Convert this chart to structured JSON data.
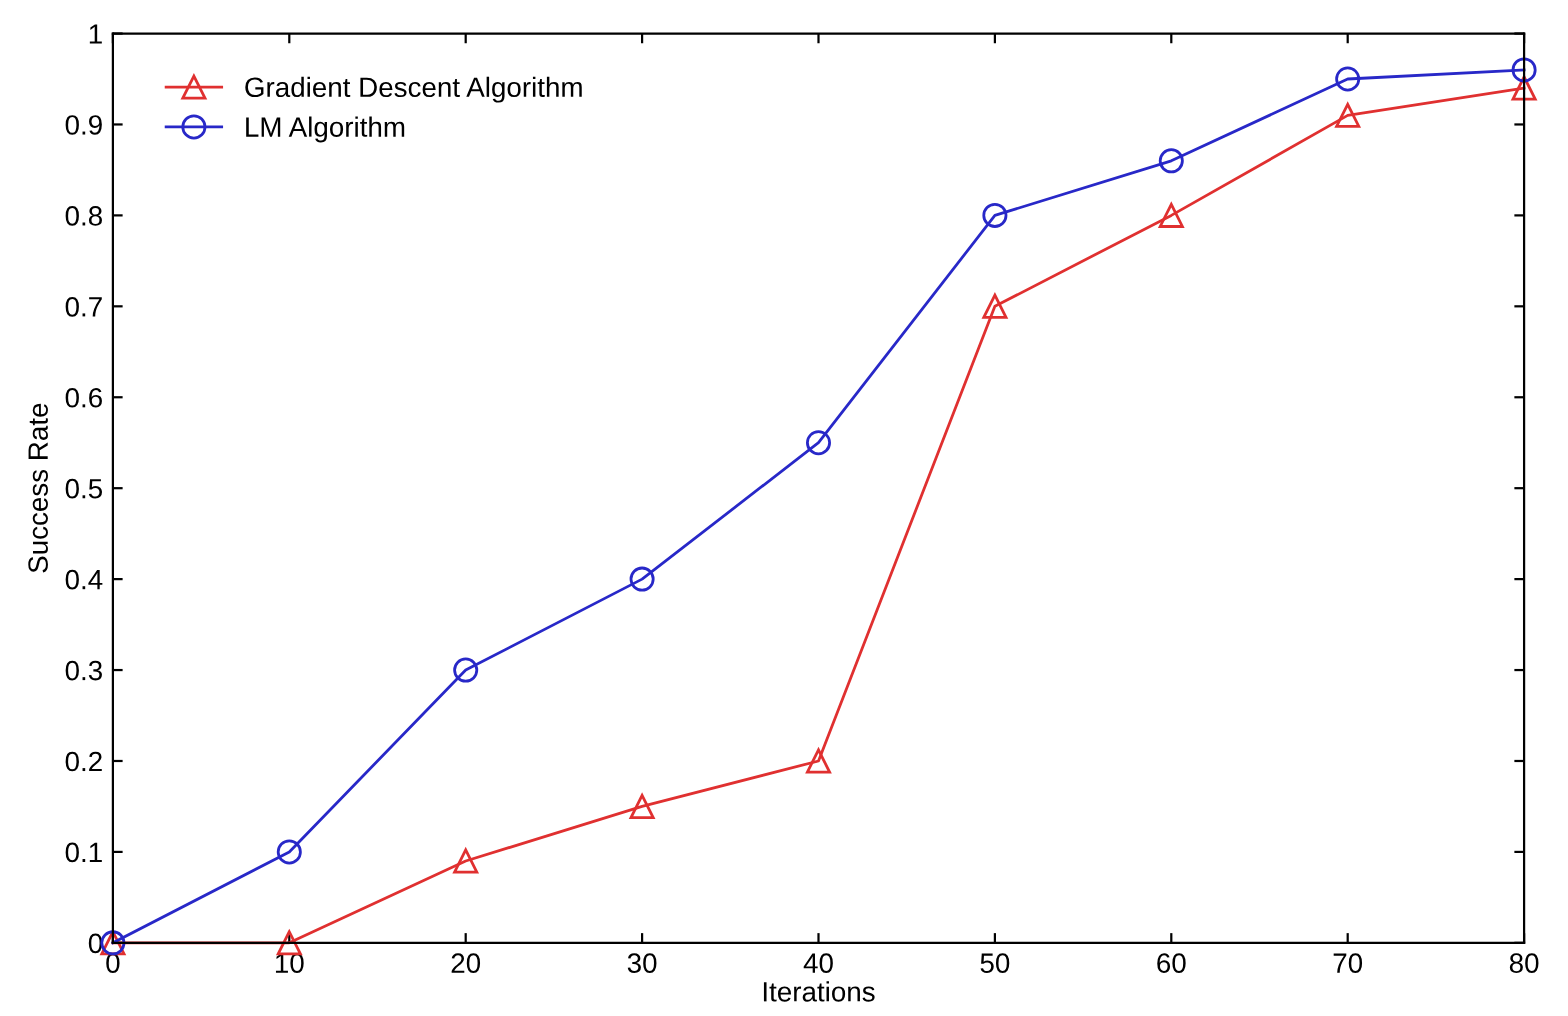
{
  "chart_data": {
    "type": "line",
    "xlabel": "Iterations",
    "ylabel": "Success Rate",
    "x": [
      0,
      10,
      20,
      30,
      40,
      50,
      60,
      70,
      80
    ],
    "series": [
      {
        "name": "Gradient Descent Algorithm",
        "color": "#e03030",
        "marker": "triangle",
        "values": [
          0,
          0,
          0.09,
          0.15,
          0.2,
          0.7,
          0.8,
          0.91,
          0.94
        ]
      },
      {
        "name": "LM Algorithm",
        "color": "#2828c8",
        "marker": "circle",
        "values": [
          0,
          0.1,
          0.3,
          0.4,
          0.55,
          0.8,
          0.86,
          0.95,
          0.96
        ]
      }
    ],
    "xlim": [
      0,
      80
    ],
    "xticks": [
      0,
      10,
      20,
      30,
      40,
      50,
      60,
      70,
      80
    ],
    "ylim": [
      0,
      1
    ],
    "yticks": [
      0,
      0.1,
      0.2,
      0.3,
      0.4,
      0.5,
      0.6,
      0.7,
      0.8,
      0.9,
      1
    ],
    "grid": false,
    "legend": "top left",
    "line_style": "solid"
  }
}
